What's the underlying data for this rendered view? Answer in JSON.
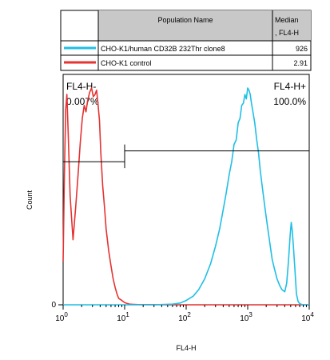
{
  "chart_data": {
    "type": "line",
    "title": "",
    "xlabel": "FL4-H",
    "ylabel": "Count",
    "x_scale": "log",
    "xlim": [
      1,
      10000
    ],
    "ylim": [
      0,
      1
    ],
    "x_ticks": [
      {
        "base": "10",
        "exp": "0",
        "value": 1
      },
      {
        "base": "10",
        "exp": "1",
        "value": 10
      },
      {
        "base": "10",
        "exp": "2",
        "value": 100
      },
      {
        "base": "10",
        "exp": "3",
        "value": 1000
      },
      {
        "base": "10",
        "exp": "4",
        "value": 10000
      }
    ],
    "y_ticks": [
      {
        "label": "0",
        "value": 0
      }
    ],
    "grid": false,
    "legend_table": {
      "headers": [
        "",
        "Population Name",
        "Median\n, FL4-H"
      ],
      "rows": [
        {
          "name": "CHO-K1/human CD32B 232Thr clone8",
          "median": "926",
          "color": "#1fbfe6"
        },
        {
          "name": "CHO-K1 control",
          "median": "2.91",
          "color": "#e63232"
        }
      ]
    },
    "gates": [
      {
        "name": "FL4-H-",
        "percent": "0.007%",
        "range": [
          1,
          10
        ],
        "level": 0.66
      },
      {
        "name": "FL4-H+",
        "percent": "100.0%",
        "range": [
          10,
          10000
        ],
        "level": 0.71
      }
    ],
    "series": [
      {
        "name": "CHO-K1 control",
        "color": "#e63232",
        "x": [
          1,
          1.05,
          1.1,
          1.15,
          1.2,
          1.3,
          1.45,
          1.6,
          1.75,
          1.9,
          2.05,
          2.2,
          2.35,
          2.5,
          2.7,
          2.9,
          3.1,
          3.3,
          3.5,
          3.7,
          3.9,
          4.1,
          4.4,
          4.7,
          5.0,
          5.5,
          6.0,
          6.5,
          7.0,
          7.5,
          8.0,
          9.0,
          10,
          11,
          12,
          14,
          16,
          50,
          300,
          2000,
          10000
        ],
        "y": [
          0.2,
          0.6,
          0.9,
          0.97,
          0.82,
          0.5,
          0.3,
          0.45,
          0.6,
          0.75,
          0.86,
          0.92,
          0.89,
          0.94,
          0.98,
          1.0,
          0.96,
          0.97,
          0.99,
          0.92,
          0.85,
          0.7,
          0.55,
          0.45,
          0.35,
          0.25,
          0.18,
          0.12,
          0.08,
          0.05,
          0.03,
          0.02,
          0.01,
          0.006,
          0.003,
          0.002,
          0.001,
          0.0,
          0.0,
          0.0,
          0.0
        ]
      },
      {
        "name": "CHO-K1/human CD32B 232Thr clone8",
        "color": "#1fbfe6",
        "x": [
          1,
          30,
          60,
          80,
          100,
          130,
          160,
          200,
          250,
          300,
          350,
          400,
          450,
          500,
          550,
          600,
          650,
          700,
          750,
          800,
          850,
          900,
          950,
          1000,
          1050,
          1100,
          1150,
          1200,
          1300,
          1400,
          1500,
          1600,
          1700,
          1900,
          2100,
          2300,
          2500,
          2700,
          3000,
          3300,
          3600,
          4000,
          4300,
          4600,
          4900,
          5100,
          5300,
          5500,
          5800,
          6200,
          6600,
          7000,
          7500,
          8000,
          10000
        ],
        "y": [
          0.0,
          0.0,
          0.003,
          0.008,
          0.02,
          0.04,
          0.07,
          0.12,
          0.19,
          0.27,
          0.35,
          0.44,
          0.52,
          0.6,
          0.66,
          0.74,
          0.76,
          0.84,
          0.86,
          0.92,
          0.93,
          0.97,
          0.95,
          1.0,
          0.99,
          0.97,
          0.93,
          0.9,
          0.84,
          0.76,
          0.7,
          0.62,
          0.56,
          0.45,
          0.36,
          0.28,
          0.21,
          0.17,
          0.12,
          0.09,
          0.07,
          0.06,
          0.1,
          0.2,
          0.32,
          0.38,
          0.34,
          0.28,
          0.18,
          0.05,
          0.015,
          0.005,
          0.002,
          0.0,
          0.0
        ]
      }
    ]
  }
}
